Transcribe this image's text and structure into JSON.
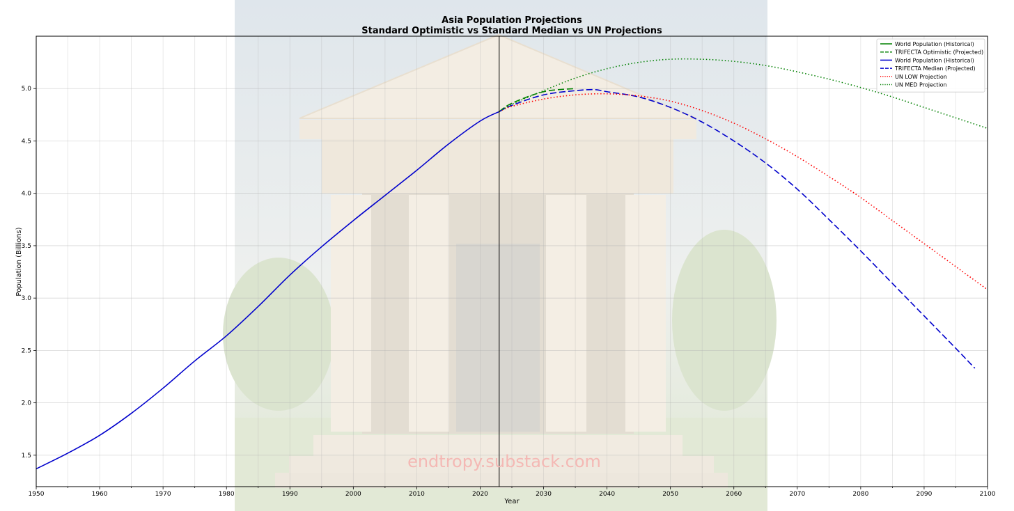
{
  "chart_data": {
    "type": "line",
    "title": "Asia Population Projections",
    "subtitle": "Standard Optimistic vs Standard Median vs UN Projections",
    "xlabel": "Year",
    "ylabel": "Population (Billions)",
    "xlim": [
      1950,
      2100
    ],
    "ylim": [
      1.2,
      5.5
    ],
    "xticks": [
      1950,
      1960,
      1970,
      1980,
      1990,
      2000,
      2010,
      2020,
      2030,
      2040,
      2050,
      2060,
      2070,
      2080,
      2090,
      2100
    ],
    "yticks": [
      1.5,
      2.0,
      2.5,
      3.0,
      3.5,
      4.0,
      4.5,
      5.0
    ],
    "grid": true,
    "legend_position": "top-right",
    "reference_line_x": 2023,
    "watermark": "endtropy.substack.com",
    "series": [
      {
        "name": "World Population (Historical)",
        "color": "#008000",
        "style": "solid",
        "x": [],
        "y": []
      },
      {
        "name": "TRIFECTA Optimistic (Projected)",
        "color": "#008000",
        "style": "dashed",
        "x": [
          2023,
          2025,
          2030,
          2035
        ],
        "y": [
          4.78,
          4.86,
          4.97,
          5.0
        ]
      },
      {
        "name": "World Population (Historical)",
        "color": "#0000cc",
        "style": "solid",
        "x": [
          1950,
          1955,
          1960,
          1965,
          1970,
          1975,
          1980,
          1985,
          1990,
          1995,
          2000,
          2005,
          2010,
          2015,
          2020,
          2023
        ],
        "y": [
          1.37,
          1.52,
          1.69,
          1.9,
          2.14,
          2.4,
          2.64,
          2.92,
          3.22,
          3.49,
          3.74,
          3.98,
          4.22,
          4.47,
          4.69,
          4.78
        ]
      },
      {
        "name": "TRIFECTA Median (Projected)",
        "color": "#0000cc",
        "style": "dashed",
        "x": [
          2023,
          2025,
          2030,
          2035,
          2038,
          2040,
          2045,
          2050,
          2055,
          2060,
          2065,
          2070,
          2075,
          2080,
          2085,
          2090,
          2095,
          2098
        ],
        "y": [
          4.78,
          4.84,
          4.94,
          4.98,
          4.99,
          4.97,
          4.92,
          4.82,
          4.68,
          4.5,
          4.29,
          4.04,
          3.75,
          3.45,
          3.14,
          2.83,
          2.52,
          2.33
        ]
      },
      {
        "name": "UN LOW Projection",
        "color": "#ff0000",
        "style": "dotted",
        "x": [
          2023,
          2025,
          2030,
          2035,
          2040,
          2045,
          2050,
          2055,
          2060,
          2065,
          2070,
          2075,
          2080,
          2085,
          2090,
          2095,
          2100
        ],
        "y": [
          4.78,
          4.83,
          4.9,
          4.94,
          4.95,
          4.93,
          4.88,
          4.79,
          4.67,
          4.52,
          4.35,
          4.16,
          3.96,
          3.74,
          3.52,
          3.3,
          3.08
        ]
      },
      {
        "name": "UN MED Projection",
        "color": "#008000",
        "style": "dotted",
        "x": [
          2023,
          2025,
          2030,
          2035,
          2040,
          2045,
          2050,
          2055,
          2060,
          2065,
          2070,
          2075,
          2080,
          2085,
          2090,
          2095,
          2100
        ],
        "y": [
          4.78,
          4.85,
          4.98,
          5.1,
          5.19,
          5.25,
          5.28,
          5.28,
          5.26,
          5.22,
          5.16,
          5.09,
          5.01,
          4.92,
          4.82,
          4.72,
          4.62
        ]
      }
    ]
  }
}
